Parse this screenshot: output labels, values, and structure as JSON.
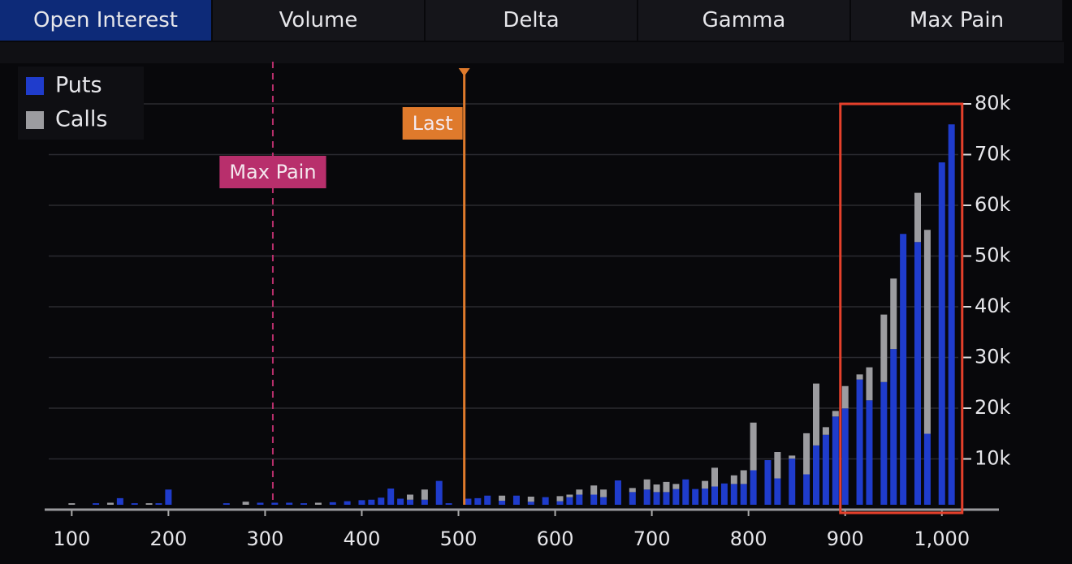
{
  "tabs": [
    "Open Interest",
    "Volume",
    "Delta",
    "Gamma",
    "Max Pain"
  ],
  "active_tab": 0,
  "chart_data": {
    "type": "bar",
    "stacked": true,
    "x": [
      100,
      125,
      140,
      150,
      165,
      180,
      190,
      200,
      260,
      280,
      295,
      310,
      325,
      340,
      355,
      370,
      385,
      400,
      410,
      420,
      430,
      440,
      450,
      465,
      480,
      490,
      510,
      520,
      530,
      545,
      560,
      575,
      590,
      605,
      615,
      625,
      640,
      650,
      665,
      680,
      695,
      705,
      715,
      725,
      735,
      745,
      755,
      765,
      775,
      785,
      795,
      805,
      820,
      830,
      845,
      860,
      870,
      880,
      890,
      900,
      915,
      925,
      940,
      950,
      960,
      975,
      985,
      1000,
      1010
    ],
    "series": [
      {
        "name": "Puts",
        "color": "#1f3ccc",
        "values": [
          0,
          300,
          0,
          1300,
          300,
          0,
          300,
          3000,
          300,
          0,
          400,
          400,
          400,
          300,
          0,
          500,
          700,
          900,
          1000,
          1400,
          3200,
          1200,
          1000,
          1000,
          4700,
          300,
          1200,
          1300,
          1800,
          800,
          1800,
          600,
          1500,
          700,
          1500,
          2000,
          2000,
          1500,
          4800,
          2500,
          3000,
          2500,
          2500,
          3100,
          5000,
          3100,
          3200,
          3600,
          4200,
          4100,
          4100,
          6800,
          8800,
          5200,
          9100,
          6000,
          11700,
          13800,
          17400,
          19000,
          24700,
          20600,
          24200,
          30700,
          53400,
          51800,
          14000,
          67500,
          75000
        ]
      },
      {
        "name": "Calls",
        "color": "#9c9ca0",
        "values": [
          300,
          0,
          400,
          0,
          0,
          300,
          0,
          0,
          0,
          600,
          0,
          0,
          0,
          0,
          400,
          0,
          0,
          0,
          0,
          0,
          0,
          0,
          1000,
          2000,
          0,
          0,
          0,
          0,
          0,
          1000,
          0,
          1000,
          0,
          1000,
          500,
          1000,
          1800,
          1500,
          0,
          800,
          2000,
          1500,
          2000,
          1000,
          0,
          0,
          1500,
          3700,
          0,
          1700,
          2700,
          9400,
          0,
          5200,
          600,
          8100,
          12200,
          1500,
          1100,
          4400,
          1000,
          6500,
          13300,
          13900,
          0,
          9700,
          40200,
          0,
          0
        ]
      }
    ],
    "xlim": [
      72,
      1059
    ],
    "ylim": [
      0,
      86000
    ],
    "xticks": [
      100,
      200,
      300,
      400,
      500,
      600,
      700,
      800,
      900,
      {
        "value": 1000,
        "label": "1,000"
      }
    ],
    "yticks": [
      {
        "value": 10000,
        "label": "10k"
      },
      {
        "value": 20000,
        "label": "20k"
      },
      {
        "value": 30000,
        "label": "30k"
      },
      {
        "value": 40000,
        "label": "40k"
      },
      {
        "value": 50000,
        "label": "50k"
      },
      {
        "value": 60000,
        "label": "60k"
      },
      {
        "value": 70000,
        "label": "70k"
      },
      {
        "value": 80000,
        "label": "80k"
      }
    ],
    "grid": true,
    "legend": "top-left",
    "markers": [
      {
        "label": "Max Pain",
        "x": 308,
        "color": "#b82f6c",
        "style": "dashed"
      },
      {
        "label": "Last",
        "x": 506,
        "color": "#df7a2c",
        "style": "solid"
      }
    ],
    "highlight": {
      "xlim": [
        895,
        1021
      ],
      "ylim": [
        0,
        80000
      ],
      "color": "#e5402b"
    }
  }
}
